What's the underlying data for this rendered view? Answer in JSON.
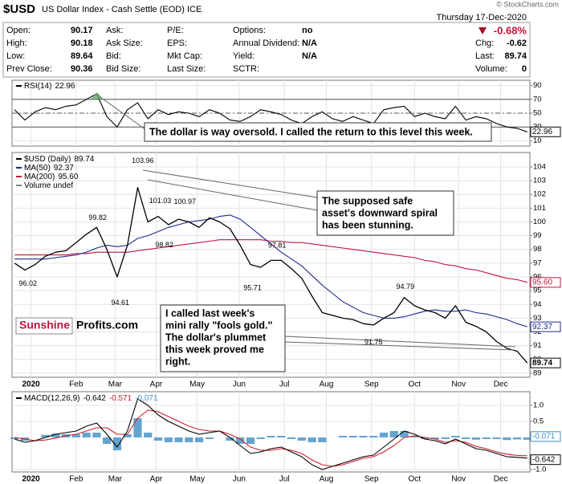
{
  "header": {
    "symbol": "$USD",
    "name": "US Dollar Index - Cash Settle (EOD) ICE",
    "copyright": "© StockCharts.com",
    "date": "Thursday 17-Dec-2020",
    "change_pct": "-0.68%",
    "quote": [
      {
        "label": "Chg:",
        "value": -0.62
      },
      {
        "label": "Last:",
        "value": 89.74
      },
      {
        "label": "Volume:",
        "value": 0
      }
    ],
    "rows": [
      [
        {
          "label": "Open:",
          "value": 90.17
        },
        {
          "label": "Ask:"
        },
        {
          "label": "P/E:"
        },
        {
          "label": "Options:",
          "value": "no"
        }
      ],
      [
        {
          "label": "High:",
          "value": 90.18
        },
        {
          "label": "Ask Size:"
        },
        {
          "label": "EPS:"
        },
        {
          "label": "Annual Dividend:",
          "value": "N/A"
        }
      ],
      [
        {
          "label": "Low:",
          "value": 89.64
        },
        {
          "label": "Bid:"
        },
        {
          "label": "Mkt Cap:"
        },
        {
          "label": "Yield:",
          "value": "N/A"
        }
      ],
      [
        {
          "label": "Prev Close:",
          "value": 90.36
        },
        {
          "label": "Bid Size:"
        },
        {
          "label": "Last Size:"
        },
        {
          "label": "SCTR:"
        }
      ]
    ]
  },
  "chart_data": [
    {
      "type": "line",
      "series": [
        {
          "name": "RSI(14)",
          "color": "#000000",
          "values": [
            55,
            40,
            52,
            58,
            55,
            60,
            62,
            70,
            78,
            45,
            30,
            55,
            65,
            42,
            55,
            48,
            52,
            50,
            45,
            55,
            50,
            40,
            38,
            45,
            55,
            52,
            48,
            40,
            35,
            45,
            52,
            42,
            38,
            45,
            40,
            35,
            55,
            58,
            60,
            45,
            50,
            45,
            42,
            60,
            40,
            45,
            42,
            35,
            30,
            28,
            22.96
          ]
        }
      ],
      "xlim": [
        -0.25,
        50.25
      ],
      "xticks": [
        1.6,
        6.0,
        9.8,
        13.8,
        17.8,
        21.9,
        26.3,
        30.4,
        34.8,
        39.0,
        43.3,
        47.4
      ],
      "ylim": [
        0,
        100
      ],
      "yticks": [
        90,
        70,
        50,
        30,
        10
      ],
      "levels": [
        70,
        50,
        30
      ],
      "grid": true
    },
    {
      "type": "line",
      "series": [
        {
          "name": "$USD (Daily)",
          "color": "#000000",
          "values": [
            97.0,
            96.5,
            96.9,
            97.5,
            97.8,
            97.9,
            98.5,
            99.1,
            99.6,
            98.0,
            96.0,
            98.3,
            102.5,
            100.0,
            100.4,
            99.8,
            100.2,
            100.0,
            99.6,
            100.3,
            100.0,
            99.5,
            98.3,
            96.9,
            96.7,
            97.2,
            97.2,
            96.6,
            95.9,
            94.6,
            93.4,
            93.2,
            93.0,
            92.9,
            92.6,
            92.5,
            93.0,
            93.4,
            94.5,
            93.9,
            93.6,
            93.4,
            93.0,
            93.9,
            92.7,
            92.4,
            92.0,
            91.3,
            90.8,
            90.6,
            89.74
          ]
        },
        {
          "name": "MA(50)",
          "color": "#1f2a8a",
          "values": [
            97.3,
            97.3,
            97.3,
            97.3,
            97.4,
            97.5,
            97.6,
            97.8,
            98.1,
            98.3,
            98.2,
            98.3,
            98.8,
            99.0,
            99.3,
            99.6,
            99.8,
            100.0,
            100.1,
            100.2,
            100.4,
            100.5,
            100.2,
            99.6,
            99.0,
            98.4,
            97.8,
            97.3,
            96.8,
            96.1,
            95.4,
            94.8,
            94.2,
            93.8,
            93.4,
            93.2,
            93.0,
            93.0,
            93.1,
            93.3,
            93.5,
            93.6,
            93.5,
            93.5,
            93.6,
            93.4,
            93.3,
            93.1,
            92.9,
            92.6,
            92.37
          ]
        },
        {
          "name": "MA(200)",
          "color": "#c0143c",
          "last_label": "95.60",
          "values": [
            97.6,
            97.6,
            97.6,
            97.6,
            97.6,
            97.6,
            97.7,
            97.7,
            97.8,
            97.8,
            97.8,
            97.8,
            97.9,
            98.0,
            98.1,
            98.2,
            98.3,
            98.4,
            98.5,
            98.6,
            98.7,
            98.7,
            98.7,
            98.7,
            98.7,
            98.6,
            98.6,
            98.5,
            98.5,
            98.4,
            98.3,
            98.2,
            98.1,
            98.0,
            97.9,
            97.8,
            97.7,
            97.6,
            97.5,
            97.4,
            97.2,
            97.1,
            96.9,
            96.8,
            96.6,
            96.5,
            96.3,
            96.1,
            95.9,
            95.8,
            95.6
          ]
        }
      ],
      "legend_extra": "Volume undef",
      "xlim": [
        -0.25,
        50.25
      ],
      "xticks": [
        {
          "value": 1.6,
          "label": "2020"
        },
        {
          "value": 6.0,
          "label": "Feb"
        },
        {
          "value": 9.8,
          "label": "Mar"
        },
        {
          "value": 13.8,
          "label": "Apr"
        },
        {
          "value": 17.8,
          "label": "May"
        },
        {
          "value": 21.9,
          "label": "Jun"
        },
        {
          "value": 26.3,
          "label": "Jul"
        },
        {
          "value": 30.4,
          "label": "Aug"
        },
        {
          "value": 34.8,
          "label": "Sep"
        },
        {
          "value": 39.0,
          "label": "Oct"
        },
        {
          "value": 43.3,
          "label": "Nov"
        },
        {
          "value": 47.4,
          "label": "Dec"
        }
      ],
      "ylim": [
        88.7,
        105.05
      ],
      "yticks": [
        89,
        90,
        91,
        92,
        93,
        94,
        95,
        96,
        97,
        98,
        99,
        100,
        101,
        102,
        103,
        104
      ],
      "grid": true,
      "price_labels": [
        {
          "x": 1.3,
          "value": 96.02,
          "position": "below"
        },
        {
          "x": 8.1,
          "value": 99.82,
          "position": "above"
        },
        {
          "x": 10.3,
          "value": 94.61,
          "position": "below"
        },
        {
          "x": 12.5,
          "value": 103.96,
          "position": "above"
        },
        {
          "x": 14.2,
          "value": 101.03,
          "position": "above"
        },
        {
          "x": 16.6,
          "value": 100.97,
          "position": "above"
        },
        {
          "x": 14.6,
          "value": 98.82,
          "position": "below"
        },
        {
          "x": 25.6,
          "value": 97.81,
          "position": "above"
        },
        {
          "x": 23.2,
          "value": 95.71,
          "position": "below"
        },
        {
          "x": 38.1,
          "value": 94.79,
          "position": "above"
        },
        {
          "x": 35.0,
          "value": 91.75,
          "position": "below"
        }
      ]
    },
    {
      "type": "line",
      "legend_label": "MACD(12,26,9)",
      "series": [
        {
          "color": "#000000",
          "values": [
            -0.05,
            -0.15,
            -0.1,
            0.0,
            0.1,
            0.15,
            0.2,
            0.35,
            0.45,
            0.1,
            -0.3,
            0.2,
            1.2,
            1.0,
            0.7,
            0.5,
            0.35,
            0.2,
            0.1,
            0.15,
            0.2,
            0.0,
            -0.25,
            -0.5,
            -0.45,
            -0.35,
            -0.3,
            -0.45,
            -0.6,
            -0.85,
            -1.0,
            -0.9,
            -0.8,
            -0.7,
            -0.6,
            -0.55,
            -0.3,
            -0.05,
            0.2,
            0.1,
            -0.05,
            -0.1,
            -0.2,
            -0.05,
            -0.2,
            -0.35,
            -0.4,
            -0.5,
            -0.6,
            -0.62,
            -0.642
          ]
        },
        {
          "color": "#d0202a",
          "values": [
            0.0,
            -0.05,
            -0.1,
            -0.08,
            -0.02,
            0.05,
            0.1,
            0.2,
            0.3,
            0.3,
            0.1,
            0.1,
            0.6,
            0.85,
            0.8,
            0.65,
            0.5,
            0.35,
            0.25,
            0.2,
            0.2,
            0.1,
            -0.05,
            -0.3,
            -0.4,
            -0.4,
            -0.35,
            -0.4,
            -0.5,
            -0.7,
            -0.85,
            -0.9,
            -0.85,
            -0.75,
            -0.65,
            -0.6,
            -0.45,
            -0.25,
            0.0,
            0.05,
            0.0,
            -0.05,
            -0.15,
            -0.1,
            -0.15,
            -0.28,
            -0.35,
            -0.45,
            -0.52,
            -0.56,
            -0.571
          ]
        }
      ],
      "histogram": {
        "color": "#3d8fc6",
        "values": [
          -0.05,
          -0.1,
          0,
          0.08,
          0.12,
          0.1,
          0.1,
          0.15,
          0.15,
          -0.2,
          -0.4,
          0.1,
          0.6,
          0.15,
          -0.1,
          -0.15,
          -0.15,
          -0.15,
          -0.15,
          -0.05,
          0,
          -0.1,
          -0.2,
          -0.2,
          -0.05,
          0.05,
          0.05,
          -0.05,
          -0.1,
          -0.15,
          -0.15,
          0,
          0.05,
          0.05,
          0.05,
          0.05,
          0.15,
          0.2,
          0.2,
          0.05,
          -0.05,
          -0.05,
          -0.05,
          0.05,
          -0.05,
          -0.07,
          -0.05,
          -0.05,
          -0.08,
          -0.06,
          -0.071
        ]
      },
      "xlim": [
        -0.25,
        50.25
      ],
      "xticks": [
        {
          "value": 1.6,
          "label": "2020"
        },
        {
          "value": 6.0,
          "label": "Feb"
        },
        {
          "value": 9.8,
          "label": "Mar"
        },
        {
          "value": 13.8,
          "label": "Apr"
        },
        {
          "value": 17.8,
          "label": "May"
        },
        {
          "value": 21.9,
          "label": "Jun"
        },
        {
          "value": 26.3,
          "label": "Jul"
        },
        {
          "value": 30.4,
          "label": "Aug"
        },
        {
          "value": 34.8,
          "label": "Sep"
        },
        {
          "value": 39.0,
          "label": "Oct"
        },
        {
          "value": 43.3,
          "label": "Nov"
        },
        {
          "value": 47.4,
          "label": "Dec"
        }
      ],
      "ylim": [
        -1.075,
        1.425
      ],
      "yticks": [
        {
          "value": 1,
          "label": "1.0"
        },
        0.5,
        {
          "value": -1,
          "label": "-1.0"
        }
      ],
      "grid": true
    }
  ],
  "annotations": [
    {
      "lines": [
        "The dollar is way oversold. I called the return to this level this week."
      ]
    },
    {
      "lines": [
        "The supposed safe",
        "asset's downward spiral",
        "has been stunning."
      ]
    },
    {
      "lines": [
        "I called last week's",
        "mini rally \"fools gold.\"",
        "The dollar's plummet",
        "this week proved me",
        "right."
      ]
    }
  ],
  "watermark": {
    "brand": "Sunshine",
    "suffix": "Profits.com"
  }
}
